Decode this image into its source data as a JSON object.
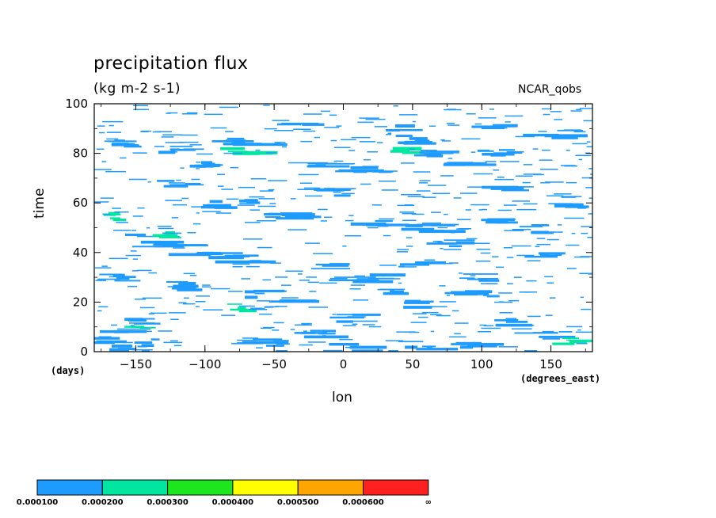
{
  "chart_data": {
    "type": "heatmap",
    "title": "precipitation flux",
    "units": "(kg m-2 s-1)",
    "dataset_label": "NCAR_qobs",
    "xlabel": "lon",
    "ylabel": "time",
    "x_units": "(degrees_east)",
    "y_units": "(days)",
    "xlim": [
      -180,
      180
    ],
    "ylim": [
      0,
      100
    ],
    "x_ticks": [
      -150,
      -100,
      -50,
      0,
      50,
      100,
      150
    ],
    "y_ticks": [
      0,
      20,
      40,
      60,
      80,
      100
    ],
    "x_tick_labels": [
      "−150",
      "−100",
      "−50",
      "0",
      "50",
      "100",
      "150"
    ],
    "y_tick_labels": [
      "0",
      "20",
      "40",
      "60",
      "80",
      "100"
    ],
    "colorbar": {
      "colors": [
        "#1e9bff",
        "#00e6a0",
        "#1ee61e",
        "#ffff00",
        "#ffa500",
        "#ff2020"
      ],
      "labels": [
        "0.000100",
        "0.000200",
        "0.000300",
        "0.000400",
        "0.000500",
        "0.000600",
        "∞"
      ]
    },
    "features": [
      {
        "lon": -172,
        "t": 5,
        "w": 30,
        "level": 1
      },
      {
        "lon": -158,
        "t": 10,
        "w": 40,
        "level": 1
      },
      {
        "lon": -150,
        "t": 13,
        "w": 25,
        "level": 1
      },
      {
        "lon": -146,
        "t": 10,
        "w": 14,
        "level": 2
      },
      {
        "lon": -162,
        "t": 2,
        "w": 20,
        "level": 1
      },
      {
        "lon": -140,
        "t": 4,
        "w": 16,
        "level": 1
      },
      {
        "lon": -140,
        "t": 46,
        "w": 30,
        "level": 1
      },
      {
        "lon": -125,
        "t": 47,
        "w": 18,
        "level": 2
      },
      {
        "lon": -120,
        "t": 44,
        "w": 36,
        "level": 1
      },
      {
        "lon": -100,
        "t": 41,
        "w": 30,
        "level": 1
      },
      {
        "lon": -75,
        "t": 38,
        "w": 40,
        "level": 1
      },
      {
        "lon": -165,
        "t": 55,
        "w": 10,
        "level": 2
      },
      {
        "lon": -155,
        "t": 84,
        "w": 20,
        "level": 1
      },
      {
        "lon": -120,
        "t": 82,
        "w": 35,
        "level": 1
      },
      {
        "lon": -75,
        "t": 85,
        "w": 40,
        "level": 1
      },
      {
        "lon": -70,
        "t": 82,
        "w": 30,
        "level": 2
      },
      {
        "lon": -100,
        "t": 76,
        "w": 18,
        "level": 1
      },
      {
        "lon": -60,
        "t": 62,
        "w": 22,
        "level": 1
      },
      {
        "lon": -40,
        "t": 55,
        "w": 30,
        "level": 1
      },
      {
        "lon": -30,
        "t": 22,
        "w": 30,
        "level": 1
      },
      {
        "lon": -60,
        "t": 24,
        "w": 22,
        "level": 1
      },
      {
        "lon": -75,
        "t": 18,
        "w": 16,
        "level": 2
      },
      {
        "lon": -15,
        "t": 75,
        "w": 35,
        "level": 1
      },
      {
        "lon": 20,
        "t": 74,
        "w": 30,
        "level": 1
      },
      {
        "lon": 50,
        "t": 86,
        "w": 25,
        "level": 1
      },
      {
        "lon": 45,
        "t": 82,
        "w": 20,
        "level": 2
      },
      {
        "lon": 70,
        "t": 80,
        "w": 30,
        "level": 1
      },
      {
        "lon": 110,
        "t": 81,
        "w": 30,
        "level": 1
      },
      {
        "lon": 150,
        "t": 88,
        "w": 35,
        "level": 1
      },
      {
        "lon": 90,
        "t": 77,
        "w": 25,
        "level": 1
      },
      {
        "lon": 120,
        "t": 53,
        "w": 25,
        "level": 1
      },
      {
        "lon": 140,
        "t": 50,
        "w": 20,
        "level": 1
      },
      {
        "lon": 60,
        "t": 50,
        "w": 35,
        "level": 1
      },
      {
        "lon": 20,
        "t": 52,
        "w": 30,
        "level": 1
      },
      {
        "lon": 80,
        "t": 44,
        "w": 30,
        "level": 1
      },
      {
        "lon": 60,
        "t": 37,
        "w": 22,
        "level": 1
      },
      {
        "lon": 100,
        "t": 30,
        "w": 30,
        "level": 1
      },
      {
        "lon": 90,
        "t": 24,
        "w": 22,
        "level": 1
      },
      {
        "lon": 20,
        "t": 30,
        "w": 35,
        "level": 1
      },
      {
        "lon": 40,
        "t": 25,
        "w": 30,
        "level": 1
      },
      {
        "lon": 60,
        "t": 20,
        "w": 25,
        "level": 1
      },
      {
        "lon": 150,
        "t": 7,
        "w": 30,
        "level": 1
      },
      {
        "lon": 165,
        "t": 5,
        "w": 20,
        "level": 2
      },
      {
        "lon": 120,
        "t": 12,
        "w": 25,
        "level": 1
      },
      {
        "lon": 10,
        "t": 2,
        "w": 30,
        "level": 1
      },
      {
        "lon": 60,
        "t": 3,
        "w": 30,
        "level": 1
      },
      {
        "lon": 100,
        "t": 3,
        "w": 30,
        "level": 1
      },
      {
        "lon": -60,
        "t": 4,
        "w": 40,
        "level": 1
      },
      {
        "lon": -20,
        "t": 8,
        "w": 30,
        "level": 1
      },
      {
        "lon": 10,
        "t": 14,
        "w": 25,
        "level": 1
      },
      {
        "lon": -120,
        "t": 68,
        "w": 25,
        "level": 1
      },
      {
        "lon": -90,
        "t": 60,
        "w": 20,
        "level": 1
      },
      {
        "lon": 0,
        "t": 65,
        "w": 25,
        "level": 1
      },
      {
        "lon": 120,
        "t": 66,
        "w": 25,
        "level": 1
      },
      {
        "lon": 165,
        "t": 60,
        "w": 20,
        "level": 1
      },
      {
        "lon": -160,
        "t": 30,
        "w": 25,
        "level": 1
      },
      {
        "lon": -120,
        "t": 27,
        "w": 25,
        "level": 1
      },
      {
        "lon": -10,
        "t": 35,
        "w": 30,
        "level": 1
      },
      {
        "lon": 150,
        "t": 40,
        "w": 25,
        "level": 1
      },
      {
        "lon": -30,
        "t": 92,
        "w": 25,
        "level": 1
      },
      {
        "lon": 40,
        "t": 91,
        "w": 22,
        "level": 1
      },
      {
        "lon": 110,
        "t": 92,
        "w": 30,
        "level": 1
      }
    ]
  }
}
